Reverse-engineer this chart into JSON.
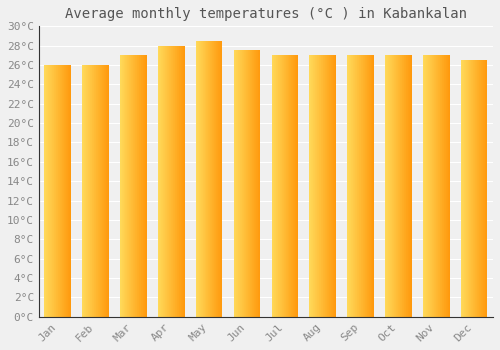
{
  "title": "Average monthly temperatures (°C ) in Kabankalan",
  "months": [
    "Jan",
    "Feb",
    "Mar",
    "Apr",
    "May",
    "Jun",
    "Jul",
    "Aug",
    "Sep",
    "Oct",
    "Nov",
    "Dec"
  ],
  "values": [
    26.0,
    26.0,
    27.0,
    28.0,
    28.5,
    27.5,
    27.0,
    27.0,
    27.0,
    27.0,
    27.0,
    26.5
  ],
  "bar_color_left": "#FFD966",
  "bar_color_right": "#FFA500",
  "ylim": [
    0,
    30
  ],
  "ytick_step": 2,
  "background_color": "#f0f0f0",
  "grid_color": "#ffffff",
  "title_fontsize": 10,
  "tick_fontsize": 8,
  "bar_width": 0.7
}
